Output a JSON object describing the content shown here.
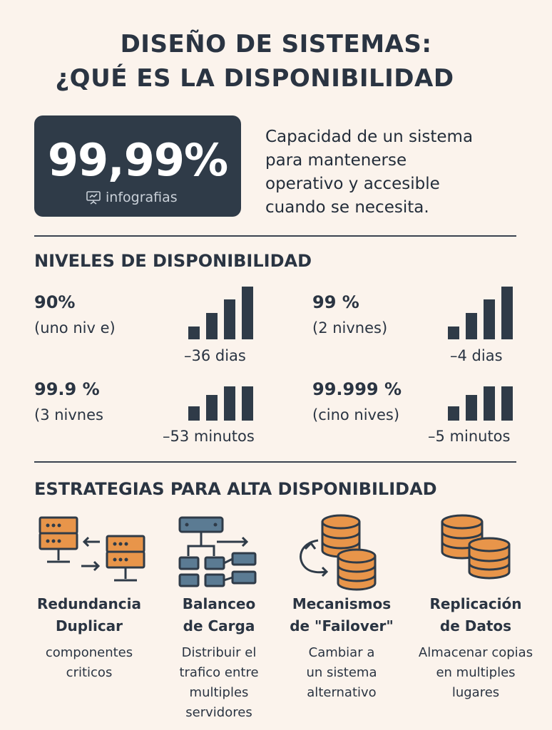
{
  "title": {
    "line1": "DISEÑO DE SISTEMAS:",
    "line2": "¿QUÉ ES LA DISPONIBILIDAD"
  },
  "hero": {
    "value": "99,99%",
    "brand": "infografias"
  },
  "definition": [
    "Capacidad de un sistema",
    "para mantenerse",
    "operativo y accesible",
    "cuando se necesita."
  ],
  "levels_heading": "NIVELES DE DISPONIBILIDAD",
  "levels": [
    {
      "percent": "90%",
      "label": "(uno niv e)",
      "downtime": "–36 dias"
    },
    {
      "percent": "99 %",
      "label": "(2 nivnes)",
      "downtime": "–4 dias"
    },
    {
      "percent": "99.9 %",
      "label": "(3 nivnes",
      "downtime": "–53 minutos"
    },
    {
      "percent": "99.999 %",
      "label": "(cino nives)",
      "downtime": "–5 minutos"
    }
  ],
  "strategies_heading": "ESTRATEGIAS PARA ALTA DISPONIBILIDAD",
  "strategies": [
    {
      "icon": "redundant-servers-icon",
      "title": [
        "Redundancia",
        "Duplicar"
      ],
      "desc": [
        "componentes",
        "criticos"
      ]
    },
    {
      "icon": "load-balancer-icon",
      "title": [
        "Balanceo",
        "de Carga"
      ],
      "desc": [
        "Distribuir el",
        "trafico entre",
        "multiples",
        "servidores"
      ]
    },
    {
      "icon": "failover-databases-icon",
      "title": [
        "Mecanismos",
        "de \"Failover\""
      ],
      "desc": [
        "Cambiar a",
        "un sistema",
        "alternativo"
      ]
    },
    {
      "icon": "replicated-databases-icon",
      "title": [
        "Replicación",
        "de Datos"
      ],
      "desc": [
        "Almacenar copias",
        "en multiples",
        "lugares"
      ]
    }
  ],
  "colors": {
    "background": "#fbf3ec",
    "dark": "#2f3b48",
    "orange": "#e8954a",
    "blue": "#5b7b93"
  }
}
